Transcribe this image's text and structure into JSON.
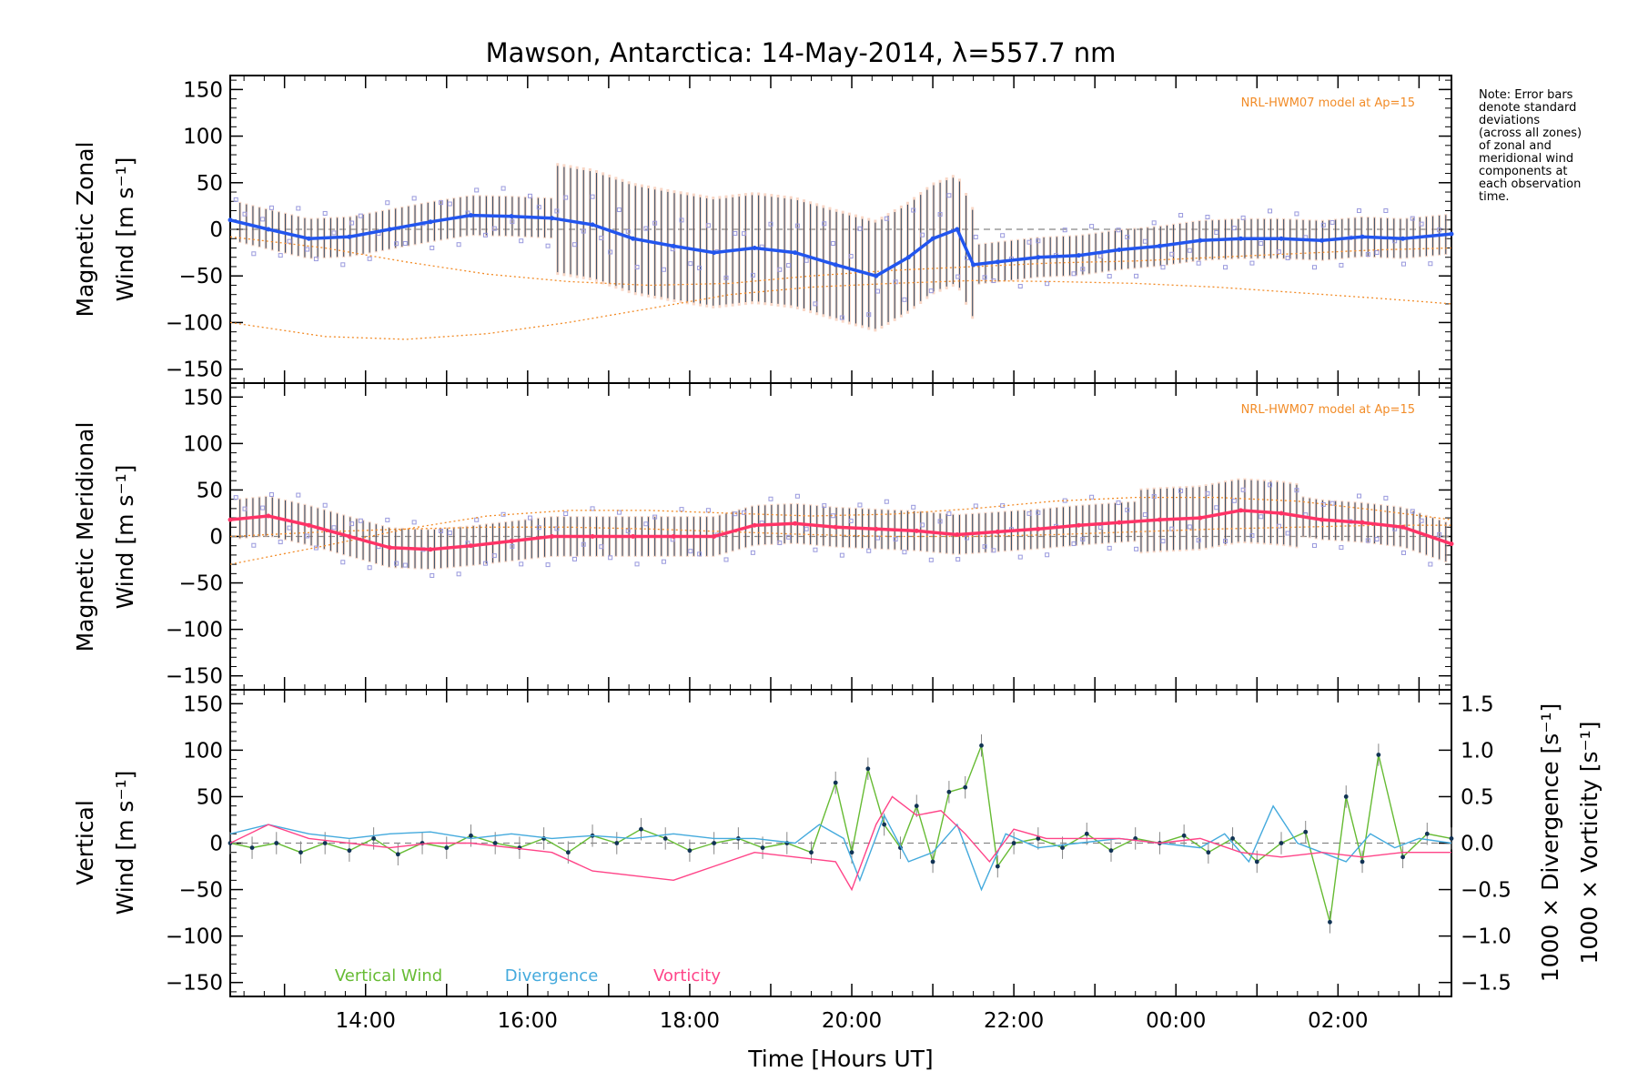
{
  "title": "Mawson, Antarctica: 14-May-2014, λ=557.7 nm",
  "note_lines": [
    "Note: Error bars",
    "denote standard",
    "deviations",
    "(across all zones)",
    "of zonal and",
    "meridional wind",
    "components at",
    "each observation",
    "time."
  ],
  "model_label": "NRL-HWM07 model at Ap=15",
  "colors": {
    "zonal": "#2255ee",
    "zonal_light": "#55aaff",
    "meridional": "#ff3366",
    "vertical": "#66bb33",
    "divergence": "#44aadd",
    "vorticity": "#ff4488",
    "model": "#f28c28",
    "scatter": "#9999dd",
    "errorbar": "#1a3a5a"
  },
  "chart_data": [
    {
      "type": "line",
      "panel": "zonal",
      "ylabel_lines": [
        "Magnetic Zonal",
        "Wind [m s⁻¹]"
      ],
      "xlim": [
        12.33,
        27.4
      ],
      "ylim": [
        -165,
        165
      ],
      "yticks": [
        150,
        100,
        50,
        0,
        -50,
        -100,
        -150
      ],
      "annotations": [
        "NRL-HWM07 model at Ap=15"
      ],
      "series": [
        {
          "role": "mean",
          "x": [
            12.33,
            12.8,
            13.3,
            13.8,
            14.3,
            14.8,
            15.3,
            15.8,
            16.3,
            16.8,
            17.3,
            17.8,
            18.3,
            18.8,
            19.3,
            19.8,
            20.3,
            20.7,
            21.0,
            21.3,
            21.5,
            21.8,
            22.3,
            22.8,
            23.3,
            23.8,
            24.3,
            24.8,
            25.3,
            25.8,
            26.3,
            26.8,
            27.4
          ],
          "y": [
            10,
            0,
            -10,
            -8,
            0,
            8,
            15,
            14,
            12,
            5,
            -10,
            -18,
            -25,
            -20,
            -25,
            -38,
            -50,
            -30,
            -10,
            0,
            -38,
            -35,
            -30,
            -28,
            -22,
            -18,
            -12,
            -10,
            -10,
            -12,
            -8,
            -10,
            -5
          ]
        },
        {
          "role": "model",
          "x": [
            12.33,
            13.5,
            14.5,
            15.5,
            16.5,
            17.5,
            18.5,
            19.5,
            20.5,
            21.5,
            22.5,
            23.5,
            24.5,
            25.5,
            26.5,
            27.4
          ],
          "y": [
            -100,
            -115,
            -118,
            -112,
            -100,
            -85,
            -70,
            -62,
            -58,
            -55,
            -56,
            -58,
            -62,
            -68,
            -74,
            -80
          ]
        },
        {
          "role": "model",
          "x": [
            12.33,
            13.5,
            14.5,
            15.5,
            16.5,
            17.5,
            18.5,
            19.5,
            20.5,
            21.5,
            22.5,
            23.5,
            24.5,
            25.5,
            26.5,
            27.4
          ],
          "y": [
            -8,
            -20,
            -35,
            -48,
            -56,
            -60,
            -58,
            -50,
            -44,
            -40,
            -36,
            -34,
            -30,
            -26,
            -22,
            -20
          ]
        }
      ]
    },
    {
      "type": "line",
      "panel": "meridional",
      "ylabel_lines": [
        "Magnetic Meridional",
        "Wind [m s⁻¹]"
      ],
      "xlim": [
        12.33,
        27.4
      ],
      "ylim": [
        -165,
        165
      ],
      "yticks": [
        150,
        100,
        50,
        0,
        -50,
        -100,
        -150
      ],
      "annotations": [
        "NRL-HWM07 model at Ap=15"
      ],
      "series": [
        {
          "role": "mean",
          "x": [
            12.33,
            12.8,
            13.3,
            13.8,
            14.3,
            14.8,
            15.3,
            15.8,
            16.3,
            16.8,
            17.3,
            17.8,
            18.3,
            18.8,
            19.3,
            19.8,
            20.3,
            20.8,
            21.3,
            21.8,
            22.3,
            22.8,
            23.3,
            23.8,
            24.3,
            24.8,
            25.3,
            25.8,
            26.3,
            26.8,
            27.4
          ],
          "y": [
            18,
            22,
            12,
            0,
            -12,
            -14,
            -10,
            -5,
            0,
            0,
            0,
            0,
            0,
            12,
            14,
            10,
            8,
            6,
            2,
            5,
            8,
            12,
            15,
            18,
            20,
            28,
            25,
            18,
            15,
            10,
            -8
          ]
        },
        {
          "role": "model",
          "x": [
            12.33,
            13.5,
            14.5,
            15.5,
            16.5,
            17.5,
            18.5,
            19.5,
            20.5,
            21.5,
            22.5,
            23.5,
            24.5,
            25.5,
            26.5,
            27.4
          ],
          "y": [
            -30,
            -10,
            8,
            22,
            28,
            28,
            25,
            22,
            24,
            30,
            38,
            42,
            42,
            38,
            28,
            18
          ]
        },
        {
          "role": "model",
          "x": [
            12.33,
            13.5,
            14.5,
            15.5,
            16.5,
            17.5,
            18.5,
            19.5,
            20.5,
            21.5,
            22.5,
            23.5,
            24.5,
            25.5,
            26.5,
            27.4
          ],
          "y": [
            0,
            5,
            8,
            10,
            10,
            8,
            5,
            2,
            0,
            0,
            2,
            5,
            8,
            10,
            12,
            12
          ]
        }
      ]
    },
    {
      "type": "line",
      "panel": "vertical",
      "ylabel_lines": [
        "Vertical",
        "Wind [m s⁻¹]"
      ],
      "y2label_divergence": "1000 × Divergence [s⁻¹]",
      "y2label_vorticity": "1000 × Vorticity [s⁻¹]",
      "xlabel": "Time [Hours UT]",
      "xlim": [
        12.33,
        27.4
      ],
      "ylim": [
        -165,
        165
      ],
      "yticks": [
        150,
        100,
        50,
        0,
        -50,
        -100,
        -150
      ],
      "y2lim": [
        -1.65,
        1.65
      ],
      "y2ticks": [
        "1.5",
        "1.0",
        "0.5",
        "0.0",
        "-0.5",
        "-1.0",
        "-1.5"
      ],
      "xticks": [
        "14:00",
        "16:00",
        "18:00",
        "20:00",
        "22:00",
        "00:00",
        "02:00"
      ],
      "xtick_values": [
        14,
        16,
        18,
        20,
        22,
        24,
        26
      ],
      "legend": [
        "Vertical Wind",
        "Divergence",
        "Vorticity"
      ],
      "series": [
        {
          "name": "Vertical Wind",
          "axis": "left",
          "x": [
            12.33,
            12.6,
            12.9,
            13.2,
            13.5,
            13.8,
            14.1,
            14.4,
            14.7,
            15.0,
            15.3,
            15.6,
            15.9,
            16.2,
            16.5,
            16.8,
            17.1,
            17.4,
            17.7,
            18.0,
            18.3,
            18.6,
            18.9,
            19.2,
            19.5,
            19.8,
            20.0,
            20.2,
            20.4,
            20.6,
            20.8,
            21.0,
            21.2,
            21.4,
            21.6,
            21.8,
            22.0,
            22.3,
            22.6,
            22.9,
            23.2,
            23.5,
            23.8,
            24.1,
            24.4,
            24.7,
            25.0,
            25.3,
            25.6,
            25.9,
            26.1,
            26.3,
            26.5,
            26.8,
            27.1,
            27.4
          ],
          "y": [
            0,
            -5,
            0,
            -10,
            0,
            -8,
            5,
            -12,
            0,
            -5,
            8,
            0,
            -5,
            5,
            -10,
            8,
            0,
            15,
            5,
            -8,
            0,
            5,
            -5,
            0,
            -10,
            65,
            -10,
            80,
            20,
            -5,
            40,
            -20,
            55,
            60,
            105,
            -25,
            0,
            5,
            -5,
            10,
            -8,
            5,
            0,
            8,
            -10,
            5,
            -20,
            0,
            12,
            -85,
            50,
            -20,
            95,
            -15,
            10,
            5
          ]
        },
        {
          "name": "Divergence",
          "axis": "right",
          "x": [
            12.33,
            12.8,
            13.3,
            13.8,
            14.3,
            14.8,
            15.3,
            15.8,
            16.3,
            16.8,
            17.3,
            17.8,
            18.3,
            18.8,
            19.3,
            19.6,
            19.9,
            20.1,
            20.4,
            20.7,
            21.0,
            21.3,
            21.6,
            21.9,
            22.3,
            22.8,
            23.3,
            23.8,
            24.3,
            24.6,
            24.9,
            25.2,
            25.5,
            25.8,
            26.1,
            26.4,
            26.7,
            27.0,
            27.4
          ],
          "y": [
            0.1,
            0.2,
            0.1,
            0.05,
            0.1,
            0.12,
            0.05,
            0.1,
            0.05,
            0.08,
            0.05,
            0.1,
            0.05,
            0.05,
            0.0,
            0.2,
            0.05,
            -0.4,
            0.3,
            -0.2,
            -0.1,
            0.2,
            -0.5,
            0.1,
            -0.05,
            0.0,
            0.05,
            0.0,
            -0.05,
            0.1,
            -0.2,
            0.4,
            0.0,
            -0.1,
            -0.2,
            0.1,
            -0.05,
            0.05,
            0.0
          ]
        },
        {
          "name": "Vorticity",
          "axis": "right",
          "x": [
            12.33,
            12.8,
            13.3,
            13.8,
            14.3,
            14.8,
            15.3,
            15.8,
            16.3,
            16.8,
            17.3,
            17.8,
            18.3,
            18.8,
            19.3,
            19.8,
            20.0,
            20.3,
            20.5,
            20.8,
            21.1,
            21.4,
            21.7,
            22.0,
            22.4,
            22.8,
            23.3,
            23.8,
            24.3,
            24.8,
            25.3,
            25.8,
            26.3,
            26.8,
            27.4
          ],
          "y": [
            0.0,
            0.2,
            0.05,
            0.0,
            -0.05,
            0.0,
            0.0,
            -0.05,
            -0.1,
            -0.3,
            -0.35,
            -0.4,
            -0.25,
            -0.1,
            -0.15,
            -0.2,
            -0.5,
            0.2,
            0.5,
            0.3,
            0.35,
            0.1,
            -0.2,
            0.15,
            0.05,
            0.05,
            0.05,
            0.0,
            0.05,
            -0.1,
            -0.15,
            -0.1,
            -0.15,
            -0.1,
            -0.1
          ]
        }
      ]
    }
  ]
}
